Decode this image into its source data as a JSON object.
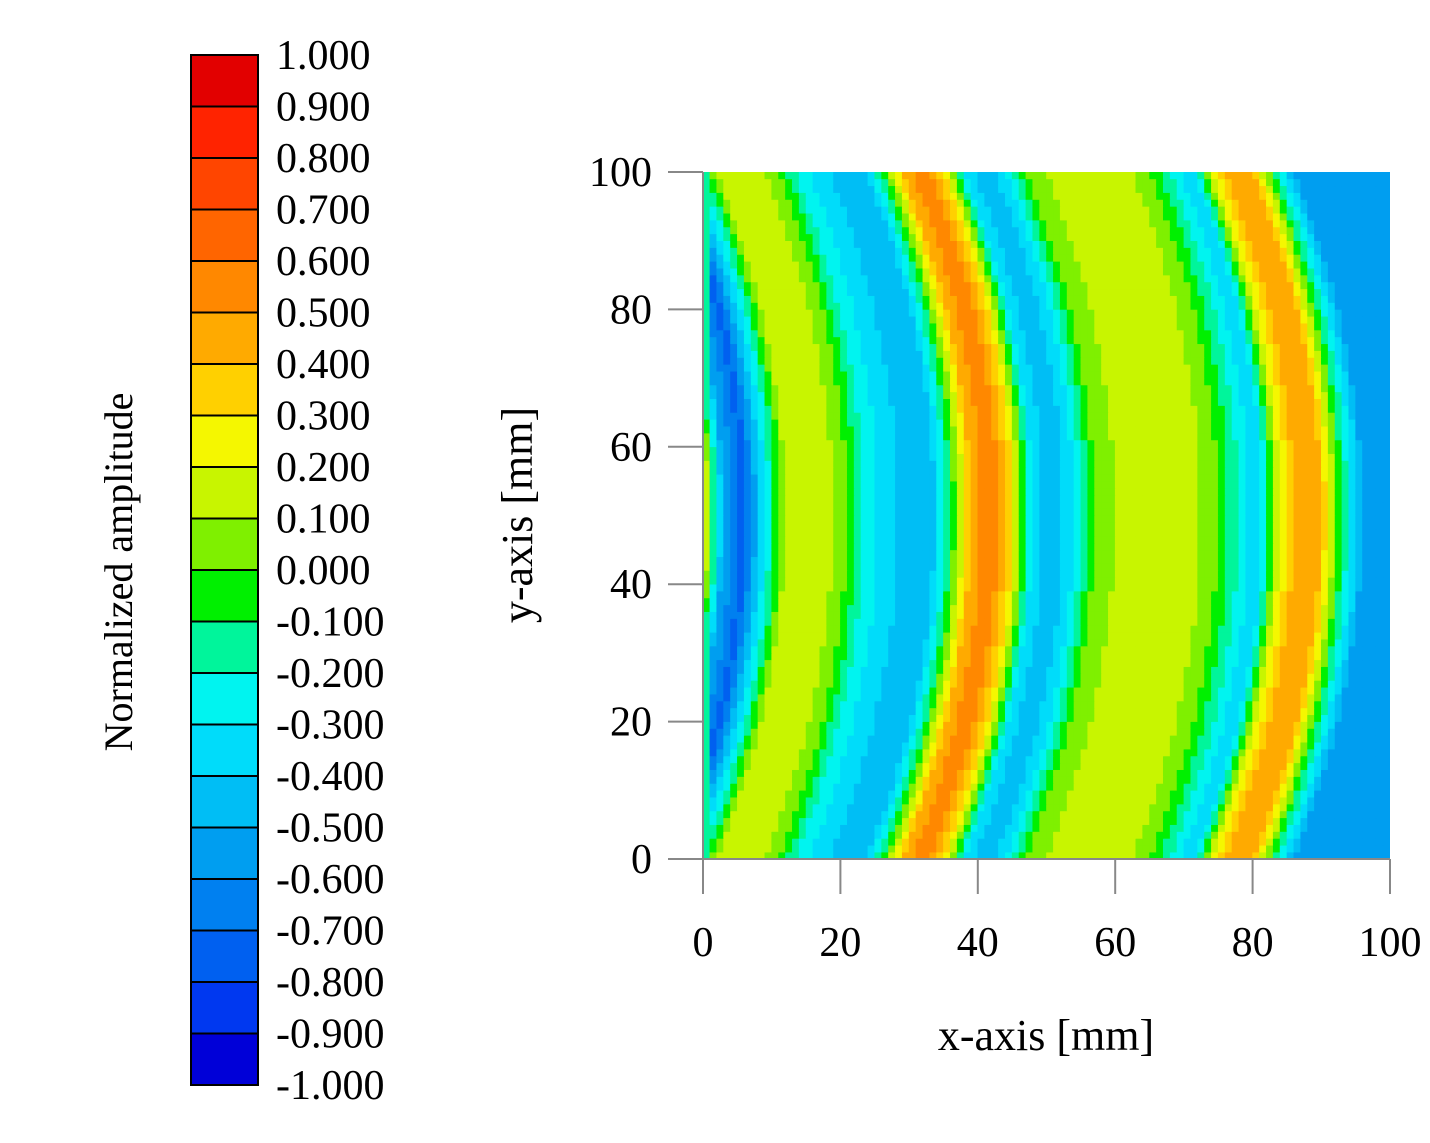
{
  "chart_data": {
    "type": "heatmap",
    "title": "",
    "xlabel": "x-axis [mm]",
    "ylabel": "y-axis [mm]",
    "xlim": [
      0,
      100
    ],
    "ylim": [
      0,
      100
    ],
    "x_ticks": [
      "0",
      "20",
      "40",
      "60",
      "80",
      "100"
    ],
    "y_ticks": [
      "0",
      "20",
      "40",
      "60",
      "80",
      "100"
    ],
    "x_tick_values": [
      0,
      20,
      40,
      60,
      80,
      100
    ],
    "y_tick_values": [
      0,
      20,
      40,
      60,
      80,
      100
    ],
    "grid": false,
    "colorbar": {
      "label": "Normalized amplitude",
      "position": "left",
      "levels": [
        "1.000",
        "0.900",
        "0.800",
        "0.700",
        "0.600",
        "0.500",
        "0.400",
        "0.300",
        "0.200",
        "0.100",
        "0.000",
        "-0.100",
        "-0.200",
        "-0.300",
        "-0.400",
        "-0.500",
        "-0.600",
        "-0.700",
        "-0.800",
        "-0.900",
        "-1.000"
      ],
      "colors": [
        "#e20000",
        "#ff2300",
        "#ff4500",
        "#ff6500",
        "#ff8800",
        "#ffaa00",
        "#ffd000",
        "#f5f700",
        "#c8f500",
        "#7ff000",
        "#00f000",
        "#00f59b",
        "#00f4f0",
        "#00dcfa",
        "#00bef5",
        "#009ef0",
        "#0080f0",
        "#0060f0",
        "#0038f0",
        "#0000d8"
      ]
    },
    "field_description": "Circular wavefronts spreading from the left edge near y = 50 mm; wavefronts bend toward +x at the center. Band values sampled along y = 50 mm.",
    "profile_center_line": {
      "x": [
        0,
        3,
        6,
        9,
        12,
        15,
        18,
        21,
        24,
        27,
        30,
        33,
        36,
        39,
        42,
        45,
        48,
        51,
        54,
        57,
        60,
        63,
        66,
        69,
        72,
        75,
        78,
        81,
        84,
        87,
        90,
        93,
        96,
        100
      ],
      "values": [
        0.3,
        -0.5,
        -0.75,
        -0.3,
        0.1,
        0.2,
        0.15,
        0.0,
        -0.25,
        -0.35,
        -0.45,
        -0.5,
        -0.1,
        0.4,
        0.6,
        0.3,
        -0.3,
        -0.5,
        -0.3,
        0.0,
        0.1,
        0.12,
        0.15,
        0.18,
        0.12,
        0.0,
        -0.2,
        -0.4,
        0.2,
        0.5,
        0.4,
        -0.1,
        -0.5,
        -0.55
      ]
    }
  }
}
